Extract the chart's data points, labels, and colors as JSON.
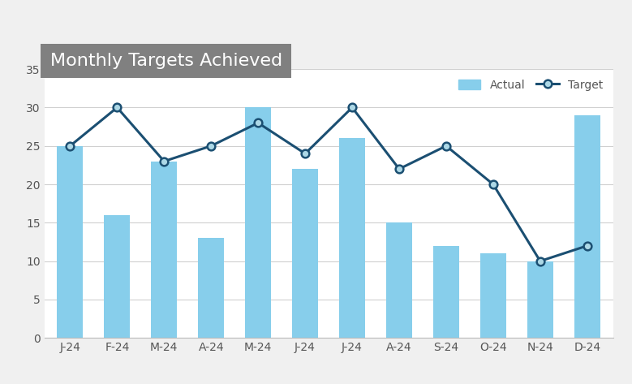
{
  "categories": [
    "J-24",
    "F-24",
    "M-24",
    "A-24",
    "M-24",
    "J-24",
    "J-24",
    "A-24",
    "S-24",
    "O-24",
    "N-24",
    "D-24"
  ],
  "actual": [
    25,
    16,
    23,
    13,
    30,
    22,
    26,
    15,
    12,
    11,
    10,
    29
  ],
  "target": [
    25,
    30,
    23,
    25,
    28,
    24,
    30,
    22,
    25,
    20,
    10,
    12
  ],
  "bar_color": "#87CEEB",
  "line_color": "#1B4F72",
  "marker_facecolor": "#add8e6",
  "marker_edgecolor": "#1B4F72",
  "title": "Monthly Targets Achieved",
  "title_bg_color": "#808080",
  "title_text_color": "#ffffff",
  "legend_actual_label": "Actual",
  "legend_target_label": "Target",
  "ylim": [
    0,
    35
  ],
  "yticks": [
    0,
    5,
    10,
    15,
    20,
    25,
    30,
    35
  ],
  "grid_color": "#d0d0d0",
  "plot_bg_color": "#ffffff",
  "fig_bg_color": "#f0f0f0"
}
